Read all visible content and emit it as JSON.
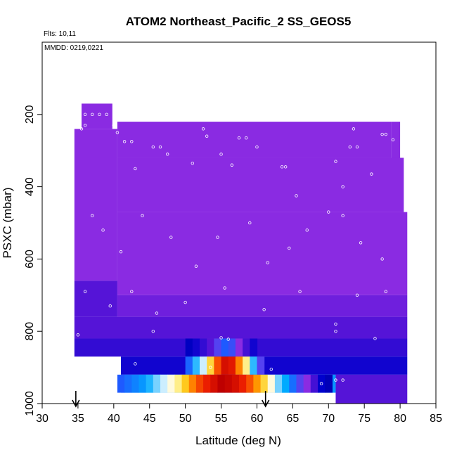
{
  "chart_data": {
    "type": "heatmap",
    "title": "ATOM2 Northeast_Pacific_2 SS_GEOS5",
    "subtitle_flights": "Flts: 10,11",
    "subtitle_dates": "MMDD: 0219,0221",
    "xlabel": "Latitude (deg N)",
    "ylabel": "PSXC (mbar)",
    "xlim": [
      30,
      85
    ],
    "ylim": [
      1000,
      0
    ],
    "x_ticks": [
      30,
      35,
      40,
      45,
      50,
      55,
      60,
      65,
      70,
      75,
      80,
      85
    ],
    "y_ticks": [
      200,
      400,
      600,
      800,
      1000
    ],
    "x_tick_labels": [
      "30",
      "35",
      "40",
      "45",
      "50",
      "55",
      "60",
      "65",
      "70",
      "75",
      "80",
      "85"
    ],
    "y_tick_labels": [
      "200",
      "400",
      "600",
      "800",
      "1000"
    ],
    "arrows_latitude": [
      34.7,
      61.2
    ],
    "colors": {
      "background_field": "#8a2be2",
      "low_layer": "#0000a0",
      "high_value": "#cc0000",
      "sample_points": "#ffffff"
    },
    "field_blocks": [
      {
        "lat": [
          35.5,
          39.8
        ],
        "p": [
          170,
          240
        ],
        "level": 0.26
      },
      {
        "lat": [
          34.5,
          40.5
        ],
        "p": [
          240,
          660
        ],
        "level": 0.26
      },
      {
        "lat": [
          40.5,
          78.8
        ],
        "p": [
          220,
          320
        ],
        "level": 0.26
      },
      {
        "lat": [
          78.8,
          80.0
        ],
        "p": [
          220,
          330
        ],
        "level": 0.26
      },
      {
        "lat": [
          80.0,
          80.5
        ],
        "p": [
          320,
          470
        ],
        "level": 0.26
      },
      {
        "lat": [
          40.5,
          80.5
        ],
        "p": [
          320,
          470
        ],
        "level": 0.26
      },
      {
        "lat": [
          40.5,
          81.0
        ],
        "p": [
          470,
          700
        ],
        "level": 0.26
      },
      {
        "lat": [
          34.5,
          40.5
        ],
        "p": [
          660,
          760
        ],
        "level": 0.22
      },
      {
        "lat": [
          40.5,
          81.0
        ],
        "p": [
          700,
          760
        ],
        "level": 0.24
      },
      {
        "lat": [
          34.5,
          81.0
        ],
        "p": [
          760,
          820
        ],
        "level": 0.22
      },
      {
        "lat": [
          34.5,
          50.0
        ],
        "p": [
          820,
          870
        ],
        "level": 0.18
      },
      {
        "lat": [
          50.0,
          60.0
        ],
        "p": [
          820,
          870
        ],
        "level": 0.05
      },
      {
        "lat": [
          60.0,
          81.0
        ],
        "p": [
          820,
          870
        ],
        "level": 0.18
      },
      {
        "lat": [
          41.0,
          81.0
        ],
        "p": [
          870,
          920
        ],
        "level": 0.14
      },
      {
        "lat": [
          41.0,
          71.0
        ],
        "p": [
          920,
          970
        ],
        "level": 0.4
      },
      {
        "lat": [
          71.0,
          81.0
        ],
        "p": [
          920,
          1000
        ],
        "level": 0.22
      }
    ],
    "surface_band": {
      "p": [
        920,
        970
      ],
      "lat": [
        40.5,
        41.5,
        42.5,
        43.5,
        44.5,
        45.5,
        46.5,
        47.5,
        48.5,
        49.5,
        50.5,
        51.5,
        52.5,
        53.5,
        54.5,
        55.5,
        56.5,
        57.5,
        58.5,
        59.5,
        60.5,
        61.5,
        62.5,
        63.5,
        64.5,
        65.5,
        66.5,
        67.5,
        68.5,
        69.5,
        70.5
      ],
      "level": [
        0.34,
        0.36,
        0.38,
        0.4,
        0.44,
        0.5,
        0.55,
        0.6,
        0.65,
        0.72,
        0.8,
        0.86,
        0.9,
        0.95,
        1.0,
        0.98,
        0.95,
        0.9,
        0.85,
        0.78,
        0.7,
        0.6,
        0.5,
        0.42,
        0.36,
        0.3,
        0.26,
        0.2,
        0.12,
        0.08,
        0.06
      ]
    },
    "mid_band": {
      "p": [
        870,
        920
      ],
      "lat": [
        50.0,
        51.0,
        52.0,
        53.0,
        54.0,
        55.0,
        56.0,
        57.0,
        58.0,
        59.0,
        60.0,
        61.0
      ],
      "level": [
        0.35,
        0.45,
        0.55,
        0.7,
        0.85,
        0.95,
        0.92,
        0.8,
        0.65,
        0.45,
        0.3,
        0.2
      ]
    },
    "upper_band": {
      "p": [
        820,
        870
      ],
      "lat": [
        50.0,
        51.0,
        52.0,
        53.0,
        54.0,
        55.0,
        56.0,
        57.0,
        58.0,
        59.0,
        60.0
      ],
      "level": [
        0.1,
        0.14,
        0.18,
        0.22,
        0.3,
        0.34,
        0.32,
        0.26,
        0.2,
        0.14,
        0.1
      ]
    },
    "samples": [
      {
        "lat": 36.0,
        "p": 200
      },
      {
        "lat": 37.0,
        "p": 200
      },
      {
        "lat": 38.0,
        "p": 200
      },
      {
        "lat": 39.0,
        "p": 200
      },
      {
        "lat": 35.5,
        "p": 240
      },
      {
        "lat": 36.0,
        "p": 230
      },
      {
        "lat": 40.0,
        "p": 230
      },
      {
        "lat": 40.5,
        "p": 250
      },
      {
        "lat": 41.5,
        "p": 275
      },
      {
        "lat": 42.5,
        "p": 275
      },
      {
        "lat": 45.5,
        "p": 290
      },
      {
        "lat": 46.5,
        "p": 290
      },
      {
        "lat": 52.5,
        "p": 240
      },
      {
        "lat": 53.0,
        "p": 260
      },
      {
        "lat": 57.5,
        "p": 265
      },
      {
        "lat": 58.5,
        "p": 265
      },
      {
        "lat": 63.5,
        "p": 345
      },
      {
        "lat": 64.0,
        "p": 345
      },
      {
        "lat": 67.5,
        "p": 215
      },
      {
        "lat": 68.5,
        "p": 215
      },
      {
        "lat": 73.5,
        "p": 240
      },
      {
        "lat": 73.0,
        "p": 290
      },
      {
        "lat": 74.0,
        "p": 290
      },
      {
        "lat": 77.5,
        "p": 255
      },
      {
        "lat": 78.0,
        "p": 255
      },
      {
        "lat": 79.0,
        "p": 270
      },
      {
        "lat": 43.0,
        "p": 350
      },
      {
        "lat": 47.5,
        "p": 310
      },
      {
        "lat": 51.0,
        "p": 335
      },
      {
        "lat": 55.0,
        "p": 310
      },
      {
        "lat": 56.5,
        "p": 340
      },
      {
        "lat": 60.0,
        "p": 290
      },
      {
        "lat": 65.5,
        "p": 425
      },
      {
        "lat": 71.0,
        "p": 330
      },
      {
        "lat": 72.0,
        "p": 400
      },
      {
        "lat": 76.0,
        "p": 365
      },
      {
        "lat": 37.0,
        "p": 480
      },
      {
        "lat": 38.5,
        "p": 520
      },
      {
        "lat": 41.0,
        "p": 580
      },
      {
        "lat": 44.0,
        "p": 480
      },
      {
        "lat": 48.0,
        "p": 540
      },
      {
        "lat": 51.5,
        "p": 620
      },
      {
        "lat": 54.5,
        "p": 540
      },
      {
        "lat": 59.0,
        "p": 500
      },
      {
        "lat": 61.5,
        "p": 610
      },
      {
        "lat": 64.5,
        "p": 570
      },
      {
        "lat": 67.0,
        "p": 520
      },
      {
        "lat": 70.0,
        "p": 470
      },
      {
        "lat": 72.0,
        "p": 480
      },
      {
        "lat": 74.5,
        "p": 555
      },
      {
        "lat": 77.5,
        "p": 600
      },
      {
        "lat": 36.0,
        "p": 690
      },
      {
        "lat": 39.5,
        "p": 730
      },
      {
        "lat": 42.5,
        "p": 690
      },
      {
        "lat": 46.0,
        "p": 750
      },
      {
        "lat": 50.0,
        "p": 720
      },
      {
        "lat": 55.5,
        "p": 680
      },
      {
        "lat": 61.0,
        "p": 740
      },
      {
        "lat": 66.0,
        "p": 690
      },
      {
        "lat": 71.0,
        "p": 780
      },
      {
        "lat": 71.0,
        "p": 800
      },
      {
        "lat": 74.0,
        "p": 700
      },
      {
        "lat": 78.0,
        "p": 690
      },
      {
        "lat": 35.0,
        "p": 810
      },
      {
        "lat": 45.5,
        "p": 800
      },
      {
        "lat": 55.0,
        "p": 818
      },
      {
        "lat": 56.0,
        "p": 822
      },
      {
        "lat": 43.0,
        "p": 890
      },
      {
        "lat": 53.5,
        "p": 900
      },
      {
        "lat": 62.0,
        "p": 905
      },
      {
        "lat": 69.0,
        "p": 945
      },
      {
        "lat": 71.0,
        "p": 935
      },
      {
        "lat": 72.0,
        "p": 935
      },
      {
        "lat": 76.5,
        "p": 820
      }
    ]
  }
}
